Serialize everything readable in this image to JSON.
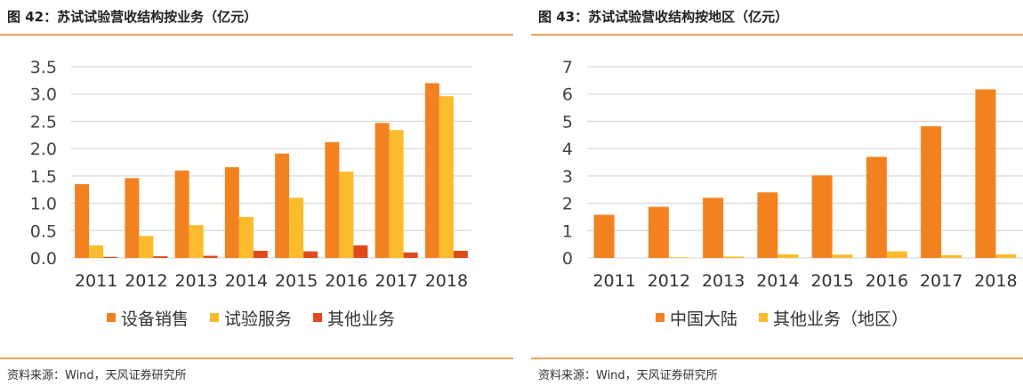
{
  "charts": [
    {
      "title": "图 42：苏试试验营收结构按业务（亿元）",
      "source": "资料来源：Wind，天风证券研究所"
    },
    {
      "title": "图 43：苏试试验营收结构按地区（亿元）",
      "source": "资料来源：Wind，天风证券研究所"
    }
  ],
  "chart_data": [
    {
      "type": "bar",
      "title": "",
      "categories": [
        "2011",
        "2012",
        "2013",
        "2014",
        "2015",
        "2016",
        "2017",
        "2018"
      ],
      "ylim": [
        0,
        3.5
      ],
      "yticks": [
        "0.0",
        "0.5",
        "1.0",
        "1.5",
        "2.0",
        "2.5",
        "3.0",
        "3.5"
      ],
      "grid": true,
      "legend": "bottom",
      "series": [
        {
          "name": "设备销售",
          "color": "#f28220",
          "values": [
            1.35,
            1.46,
            1.6,
            1.66,
            1.91,
            2.12,
            2.47,
            3.2
          ]
        },
        {
          "name": "试验服务",
          "color": "#fbbb2c",
          "values": [
            0.23,
            0.4,
            0.6,
            0.75,
            1.1,
            1.58,
            2.34,
            2.96
          ]
        },
        {
          "name": "其他业务",
          "color": "#e04a1c",
          "values": [
            0.02,
            0.03,
            0.04,
            0.13,
            0.12,
            0.23,
            0.1,
            0.13
          ]
        }
      ]
    },
    {
      "type": "bar",
      "title": "",
      "categories": [
        "2011",
        "2012",
        "2013",
        "2014",
        "2015",
        "2016",
        "2017",
        "2018"
      ],
      "ylim": [
        0,
        7
      ],
      "yticks": [
        "0",
        "1",
        "2",
        "3",
        "4",
        "5",
        "6",
        "7"
      ],
      "grid": true,
      "legend": "bottom",
      "series": [
        {
          "name": "中国大陆",
          "color": "#f28220",
          "values": [
            1.58,
            1.87,
            2.2,
            2.4,
            3.02,
            3.7,
            4.82,
            6.17
          ]
        },
        {
          "name": "其他业务（地区）",
          "color": "#fbbb2c",
          "values": [
            0,
            0.02,
            0.05,
            0.13,
            0.12,
            0.24,
            0.1,
            0.13
          ]
        }
      ]
    }
  ]
}
